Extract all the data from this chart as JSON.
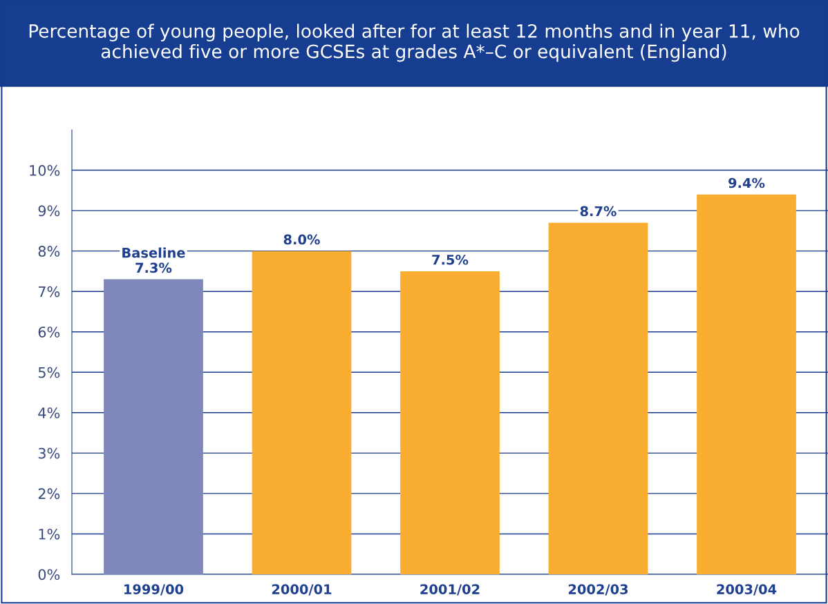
{
  "chart_data": {
    "type": "bar",
    "title": "Percentage of young people, looked after for at least 12 months and in year 11, who achieved five or more GCSEs at grades A*–C or equivalent (England)",
    "categories": [
      "1999/00",
      "2000/01",
      "2001/02",
      "2002/03",
      "2003/04"
    ],
    "values": [
      7.3,
      8.0,
      7.5,
      8.7,
      9.4
    ],
    "colors": [
      "#7f86ba",
      "#f9ae31",
      "#f9ae31",
      "#f9ae31",
      "#f9ae31"
    ],
    "value_labels": [
      "Baseline\n7.3%",
      "8.0%",
      "7.5%",
      "8.7%",
      "9.4%"
    ],
    "ylim": [
      0,
      11
    ],
    "yticks": [
      {
        "value": 0,
        "label": "0%"
      },
      {
        "value": 1,
        "label": "1%"
      },
      {
        "value": 2,
        "label": "2%"
      },
      {
        "value": 3,
        "label": "3%"
      },
      {
        "value": 4,
        "label": "4%"
      },
      {
        "value": 5,
        "label": "5%"
      },
      {
        "value": 6,
        "label": "6%"
      },
      {
        "value": 7,
        "label": "7%"
      },
      {
        "value": 8,
        "label": "8%"
      },
      {
        "value": 9,
        "label": "9%"
      },
      {
        "value": 10,
        "label": "10%"
      }
    ],
    "grid": "y"
  }
}
